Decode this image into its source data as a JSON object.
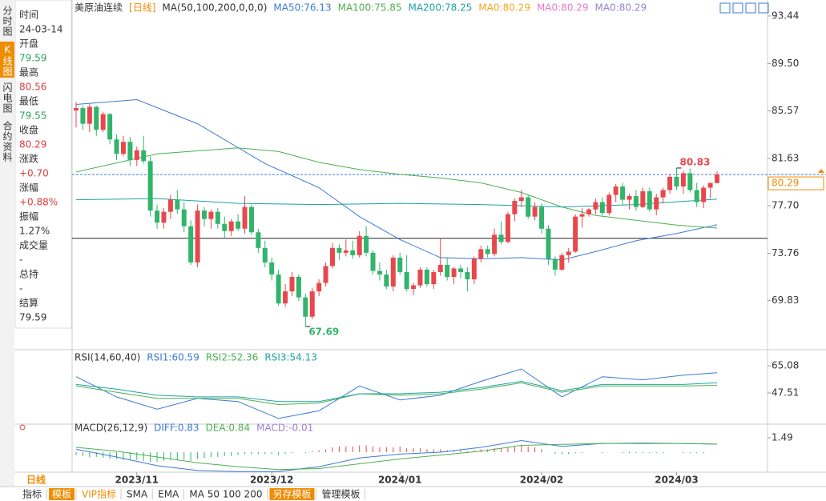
{
  "sidebar": [
    "分时图",
    "K线图",
    "闪电图",
    "合约资料"
  ],
  "info": [
    {
      "label": "时间",
      "value": "24-03-14",
      "color": "#333"
    },
    {
      "label": "开盘",
      "value": "79.59",
      "color": "#2e9e5e"
    },
    {
      "label": "最高",
      "value": "80.56",
      "color": "#e03c3c"
    },
    {
      "label": "最低",
      "value": "79.55",
      "color": "#2e9e5e"
    },
    {
      "label": "收盘",
      "value": "80.29",
      "color": "#e03c3c"
    },
    {
      "label": "涨跌",
      "value": "+0.70",
      "color": "#e03c3c"
    },
    {
      "label": "涨幅",
      "value": "+0.88%",
      "color": "#e03c3c"
    },
    {
      "label": "振幅",
      "value": "1.27%",
      "color": "#333"
    },
    {
      "label": "成交量",
      "value": "-",
      "color": "#333"
    },
    {
      "label": "总持",
      "value": "-",
      "color": "#333"
    },
    {
      "label": "结算",
      "value": "79.59",
      "color": "#333"
    }
  ],
  "chart_data": {
    "type": "candlestick",
    "period_label": "日线",
    "legend": [
      {
        "text": "美原油连续",
        "color": "#333"
      },
      {
        "text": "[日线]",
        "color": "#f08c00"
      },
      {
        "text": "MA(50,100,200,0,0,0)",
        "color": "#333"
      },
      {
        "text": "MA50:76.13",
        "color": "#3a7bd5"
      },
      {
        "text": "MA100:75.85",
        "color": "#4cb050"
      },
      {
        "text": "MA200:78.25",
        "color": "#1fa3a3"
      },
      {
        "text": "MA0:80.29",
        "color": "#f5a623"
      },
      {
        "text": "MA0:80.29",
        "color": "#e87ac8"
      },
      {
        "text": "MA0:80.29",
        "color": "#9b7fd4"
      }
    ],
    "up_color": "#e8474c",
    "down_color": "#31b46c",
    "ylim": [
      65.76,
      94.1
    ],
    "yticks": [
      93.44,
      {
        "value": 89.5,
        "label": "89.50"
      },
      85.57,
      81.63,
      {
        "value": 77.7,
        "label": "77.70"
      },
      73.76,
      69.83
    ],
    "xticks": [
      {
        "value": 9,
        "label": "2023/11"
      },
      {
        "value": 29,
        "label": "2023/12"
      },
      {
        "value": 48,
        "label": "2024/01"
      },
      {
        "value": 69,
        "label": "2024/02"
      },
      {
        "value": 89,
        "label": "2024/03"
      }
    ],
    "hline": 75.0,
    "last_price": 80.29,
    "annotations": [
      {
        "index": 89,
        "value": 80.83,
        "color": "#e8474c"
      },
      {
        "index": 34,
        "value": 67.69,
        "color": "#31b46c"
      }
    ],
    "candles": [
      [
        85.6,
        86.3,
        84.2,
        85.8
      ],
      [
        85.8,
        86.0,
        84.0,
        84.5
      ],
      [
        84.5,
        86.2,
        83.8,
        85.9
      ],
      [
        85.9,
        86.0,
        83.5,
        84.0
      ],
      [
        84.0,
        85.5,
        83.8,
        85.3
      ],
      [
        85.3,
        85.4,
        82.8,
        83.2
      ],
      [
        83.2,
        83.6,
        81.5,
        82.0
      ],
      [
        82.0,
        83.5,
        81.8,
        83.0
      ],
      [
        83.0,
        83.4,
        81.0,
        81.5
      ],
      [
        81.5,
        82.6,
        81.0,
        82.3
      ],
      [
        82.3,
        83.5,
        81.2,
        81.4
      ],
      [
        81.4,
        81.8,
        76.8,
        77.3
      ],
      [
        77.3,
        77.8,
        75.8,
        76.3
      ],
      [
        76.3,
        77.5,
        75.8,
        77.2
      ],
      [
        77.2,
        78.6,
        76.6,
        78.2
      ],
      [
        78.2,
        79.0,
        77.0,
        77.4
      ],
      [
        77.4,
        78.0,
        75.5,
        76.0
      ],
      [
        76.0,
        76.5,
        72.8,
        73.0
      ],
      [
        73.0,
        77.8,
        72.6,
        77.3
      ],
      [
        77.3,
        77.6,
        76.0,
        76.6
      ],
      [
        76.6,
        77.4,
        75.8,
        77.2
      ],
      [
        77.2,
        77.5,
        75.8,
        76.2
      ],
      [
        76.2,
        76.8,
        75.0,
        75.6
      ],
      [
        75.6,
        76.6,
        75.2,
        76.4
      ],
      [
        76.4,
        77.0,
        75.6,
        75.8
      ],
      [
        75.8,
        78.5,
        75.4,
        77.6
      ],
      [
        77.6,
        77.8,
        75.3,
        75.5
      ],
      [
        75.5,
        75.8,
        73.8,
        74.2
      ],
      [
        74.2,
        74.8,
        72.6,
        73.0
      ],
      [
        73.0,
        73.4,
        71.5,
        72.0
      ],
      [
        72.0,
        72.4,
        69.4,
        69.6
      ],
      [
        69.6,
        71.2,
        69.3,
        70.6
      ],
      [
        70.6,
        72.2,
        70.2,
        71.8
      ],
      [
        71.8,
        72.0,
        69.8,
        70.1
      ],
      [
        70.1,
        70.4,
        67.69,
        68.5
      ],
      [
        68.5,
        70.9,
        68.3,
        70.6
      ],
      [
        70.6,
        71.6,
        70.2,
        71.3
      ],
      [
        71.3,
        73.0,
        71.0,
        72.7
      ],
      [
        72.7,
        74.6,
        72.5,
        74.2
      ],
      [
        74.2,
        74.5,
        73.2,
        73.8
      ],
      [
        73.8,
        74.9,
        73.5,
        74.0
      ],
      [
        74.0,
        74.8,
        73.3,
        73.6
      ],
      [
        73.6,
        75.6,
        73.4,
        75.2
      ],
      [
        75.2,
        76.0,
        73.5,
        73.8
      ],
      [
        73.8,
        74.0,
        72.0,
        72.3
      ],
      [
        72.3,
        73.0,
        71.5,
        72.0
      ],
      [
        72.0,
        72.4,
        70.8,
        71.0
      ],
      [
        71.0,
        73.6,
        70.6,
        73.4
      ],
      [
        73.4,
        73.8,
        72.0,
        72.2
      ],
      [
        72.2,
        73.6,
        70.6,
        70.8
      ],
      [
        70.8,
        71.3,
        70.3,
        71.1
      ],
      [
        71.1,
        72.6,
        70.9,
        72.4
      ],
      [
        72.4,
        72.6,
        71.0,
        71.2
      ],
      [
        71.2,
        72.4,
        70.8,
        72.2
      ],
      [
        72.2,
        75.0,
        71.9,
        72.8
      ],
      [
        72.8,
        73.4,
        71.5,
        71.8
      ],
      [
        71.8,
        72.6,
        71.2,
        72.5
      ],
      [
        72.5,
        72.8,
        71.7,
        72.2
      ],
      [
        72.2,
        72.6,
        70.6,
        71.6
      ],
      [
        71.6,
        73.5,
        71.2,
        73.3
      ],
      [
        73.3,
        74.4,
        73.0,
        74.1
      ],
      [
        74.1,
        74.4,
        73.4,
        73.7
      ],
      [
        73.7,
        75.8,
        73.5,
        75.3
      ],
      [
        75.3,
        76.4,
        74.5,
        74.7
      ],
      [
        74.7,
        77.2,
        74.6,
        77.0
      ],
      [
        77.0,
        78.3,
        76.4,
        78.1
      ],
      [
        78.1,
        79.0,
        77.6,
        78.4
      ],
      [
        78.4,
        78.6,
        76.6,
        76.8
      ],
      [
        76.8,
        78.0,
        76.5,
        77.6
      ],
      [
        77.6,
        77.9,
        75.4,
        75.8
      ],
      [
        75.8,
        76.1,
        72.8,
        73.3
      ],
      [
        73.3,
        73.5,
        71.9,
        72.4
      ],
      [
        72.4,
        73.8,
        72.3,
        73.6
      ],
      [
        73.6,
        74.2,
        73.0,
        73.9
      ],
      [
        73.9,
        77.0,
        73.8,
        76.8
      ],
      [
        76.8,
        77.5,
        75.9,
        77.0
      ],
      [
        77.0,
        77.5,
        76.8,
        77.4
      ],
      [
        77.4,
        78.3,
        77.0,
        78.0
      ],
      [
        78.0,
        78.4,
        76.9,
        77.1
      ],
      [
        77.1,
        78.8,
        76.9,
        78.6
      ],
      [
        78.6,
        79.5,
        78.0,
        79.3
      ],
      [
        79.3,
        79.6,
        77.8,
        78.2
      ],
      [
        78.2,
        78.7,
        77.4,
        78.5
      ],
      [
        78.5,
        79.0,
        77.3,
        77.6
      ],
      [
        77.6,
        79.2,
        77.5,
        78.9
      ],
      [
        78.9,
        79.2,
        77.2,
        77.4
      ],
      [
        77.4,
        78.7,
        76.9,
        78.4
      ],
      [
        78.4,
        79.2,
        77.9,
        79.0
      ],
      [
        79.0,
        80.3,
        78.7,
        80.1
      ],
      [
        80.1,
        80.83,
        79.0,
        79.3
      ],
      [
        79.3,
        80.6,
        78.7,
        80.4
      ],
      [
        80.4,
        80.8,
        78.8,
        79.0
      ],
      [
        79.0,
        79.6,
        77.6,
        78.0
      ],
      [
        78.0,
        79.4,
        77.5,
        79.2
      ],
      [
        79.2,
        79.6,
        78.3,
        79.59
      ],
      [
        79.59,
        80.56,
        79.55,
        80.29
      ]
    ],
    "ma_lines": [
      {
        "color": "#3a7bd5",
        "x": [
          0,
          9,
          18,
          28,
          36,
          42,
          48,
          54,
          60,
          66,
          72,
          77,
          83,
          89,
          95
        ],
        "values": [
          86.1,
          86.5,
          84.5,
          81.2,
          79.2,
          76.8,
          74.9,
          73.4,
          73.3,
          73.4,
          73.2,
          73.9,
          74.8,
          75.4,
          76.13
        ]
      },
      {
        "color": "#4cb050",
        "x": [
          0,
          12,
          24,
          30,
          36,
          42,
          48,
          54,
          60,
          66,
          72,
          77,
          83,
          89,
          95
        ],
        "values": [
          80.5,
          82.0,
          82.5,
          82.2,
          81.3,
          80.7,
          80.3,
          80.0,
          79.6,
          78.8,
          77.6,
          76.9,
          76.5,
          76.1,
          75.85
        ]
      },
      {
        "color": "#1fa3a3",
        "x": [
          0,
          12,
          24,
          36,
          48,
          60,
          72,
          83,
          95
        ],
        "values": [
          78.2,
          78.3,
          77.9,
          77.8,
          77.9,
          77.8,
          77.6,
          77.8,
          78.25
        ]
      }
    ],
    "rsi": {
      "legend": [
        {
          "text": "RSI(14,60,40)",
          "color": "#333"
        },
        {
          "text": "RSI1:60.59",
          "color": "#3a7bd5"
        },
        {
          "text": "RSI2:52.36",
          "color": "#4cb050"
        },
        {
          "text": "RSI3:54.13",
          "color": "#1fa3a3"
        }
      ],
      "ylim": [
        28.39,
        73.35
      ],
      "yticks": [
        65.08,
        47.51
      ],
      "lines": [
        {
          "color": "#3a7bd5",
          "x": [
            0,
            6,
            12,
            18,
            24,
            30,
            36,
            42,
            48,
            54,
            60,
            66,
            72,
            78,
            84,
            90,
            95
          ],
          "values": [
            58,
            45,
            37,
            44,
            42,
            31,
            36,
            52,
            43,
            46,
            55,
            63,
            45,
            58,
            56,
            59,
            60.59
          ]
        },
        {
          "color": "#4cb050",
          "x": [
            0,
            6,
            12,
            18,
            24,
            30,
            36,
            42,
            48,
            54,
            60,
            66,
            72,
            78,
            84,
            90,
            95
          ],
          "values": [
            52,
            48,
            44,
            44,
            44,
            40,
            41,
            47,
            46,
            47,
            50,
            54,
            48,
            52,
            52,
            52,
            52.36
          ]
        },
        {
          "color": "#1fa3a3",
          "x": [
            0,
            6,
            12,
            18,
            24,
            30,
            36,
            42,
            48,
            54,
            60,
            66,
            72,
            78,
            84,
            90,
            95
          ],
          "values": [
            53,
            50,
            46,
            45,
            45,
            42,
            42,
            47,
            47,
            48,
            51,
            55,
            49,
            53,
            53,
            53,
            54.13
          ]
        }
      ]
    },
    "macd": {
      "legend": [
        {
          "text": "MACD(26,12,9)",
          "color": "#333"
        },
        {
          "text": "DIFF:0.83",
          "color": "#3a7bd5"
        },
        {
          "text": "DEA:0.84",
          "color": "#4cb050"
        },
        {
          "text": "MACD:-0.01",
          "color": "#9b7fd4"
        }
      ],
      "ylim": [
        -2.07,
        2.65
      ],
      "yticks": [
        1.49
      ],
      "histogram": [
        -0.3,
        -0.4,
        -0.5,
        -0.5,
        -0.6,
        -0.7,
        -0.7,
        -0.8,
        -0.8,
        -0.8,
        -0.9,
        -1.0,
        -1.0,
        -0.9,
        -0.8,
        -0.8,
        -0.8,
        -0.9,
        -0.7,
        -0.6,
        -0.5,
        -0.5,
        -0.4,
        -0.4,
        -0.3,
        -0.2,
        -0.2,
        -0.2,
        -0.2,
        -0.2,
        -0.3,
        -0.2,
        -0.1,
        0.0,
        -0.1,
        0.1,
        0.2,
        0.3,
        0.5,
        0.6,
        0.6,
        0.6,
        0.7,
        0.7,
        0.6,
        0.5,
        0.5,
        0.5,
        0.6,
        0.4,
        0.4,
        0.4,
        0.3,
        0.3,
        0.3,
        0.2,
        0.2,
        0.2,
        0.1,
        0.2,
        0.3,
        0.3,
        0.4,
        0.4,
        0.5,
        0.6,
        0.7,
        0.6,
        0.5,
        0.3,
        0.0,
        -0.2,
        -0.2,
        -0.2,
        -0.1,
        -0.1,
        0.0,
        0.0,
        -0.1,
        0.0,
        0.0,
        -0.1,
        -0.1,
        -0.1,
        -0.1,
        -0.1,
        -0.1,
        -0.1,
        0.0,
        0.0,
        -0.1,
        -0.1,
        -0.1,
        -0.1,
        -0.01,
        -0.01
      ],
      "lines": [
        {
          "color": "#3a7bd5",
          "x": [
            0,
            6,
            12,
            18,
            24,
            30,
            36,
            42,
            48,
            54,
            60,
            66,
            72,
            78,
            84,
            90,
            95
          ],
          "values": [
            0.3,
            -0.5,
            -1.4,
            -1.9,
            -2.0,
            -2.0,
            -1.5,
            -0.6,
            -0.2,
            0.0,
            0.5,
            1.2,
            0.6,
            0.9,
            0.9,
            0.9,
            0.83
          ]
        },
        {
          "color": "#4cb050",
          "x": [
            0,
            6,
            12,
            18,
            24,
            30,
            36,
            42,
            48,
            54,
            60,
            66,
            72,
            78,
            84,
            90,
            95
          ],
          "values": [
            0.5,
            0.1,
            -0.5,
            -1.1,
            -1.5,
            -1.8,
            -1.7,
            -1.2,
            -0.7,
            -0.3,
            0.1,
            0.7,
            0.8,
            0.9,
            0.95,
            0.9,
            0.84
          ]
        }
      ]
    }
  },
  "toolbar": [
    {
      "text": "指标",
      "bg": "#fff",
      "color": "#333"
    },
    {
      "text": "模板",
      "bg": "#f08c00",
      "color": "#fff"
    },
    {
      "text": "VIP指标",
      "bg": "#fff",
      "color": "#f08c00"
    },
    {
      "text": "SMA",
      "bg": "#fff",
      "color": "#333"
    },
    {
      "text": "EMA",
      "bg": "#fff",
      "color": "#333"
    },
    {
      "text": "MA 50 100 200",
      "bg": "#fff",
      "color": "#333"
    },
    {
      "text": "另存模板",
      "bg": "#f08c00",
      "color": "#fff"
    },
    {
      "text": "管理模板",
      "bg": "#fff",
      "color": "#333"
    }
  ]
}
